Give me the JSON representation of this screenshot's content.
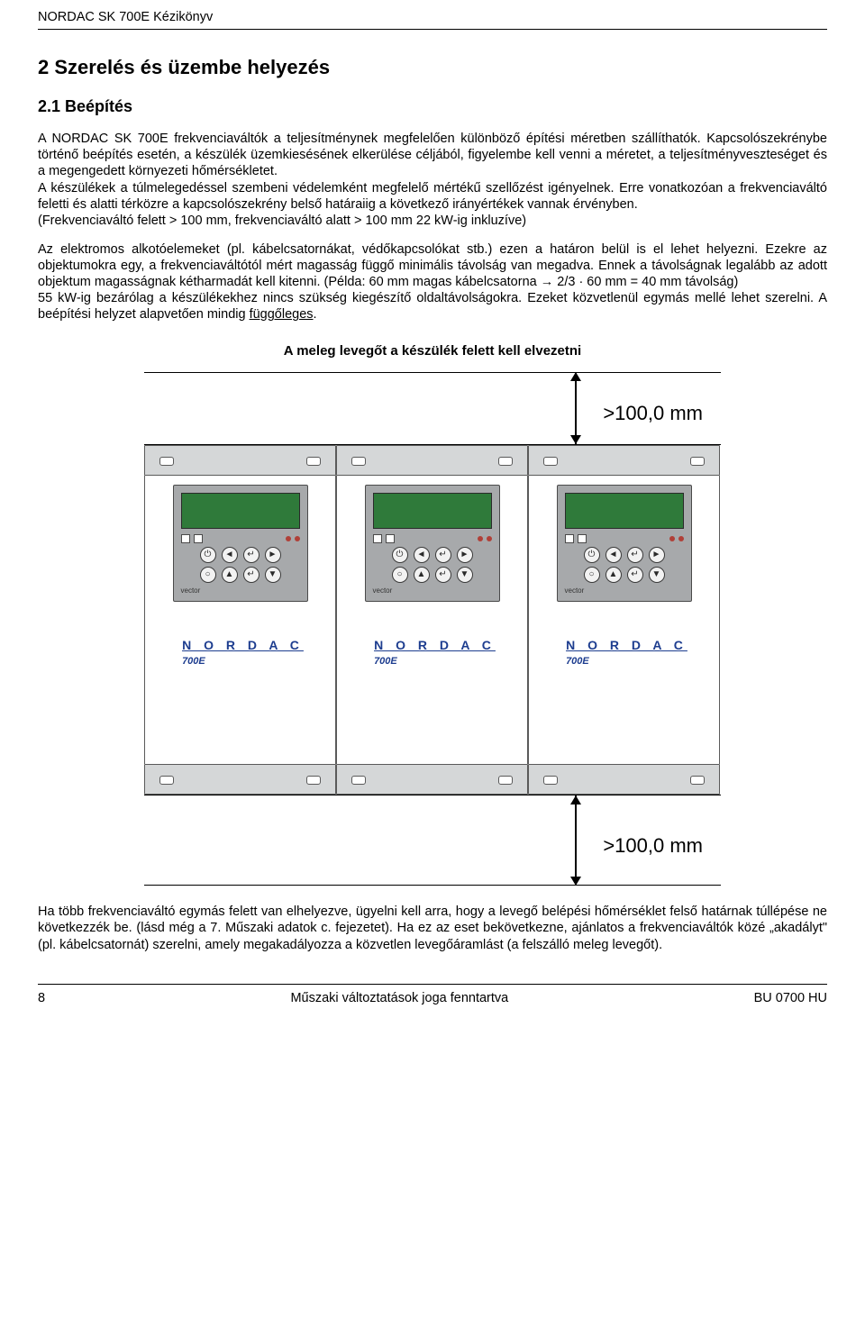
{
  "header": {
    "doc_title": "NORDAC SK 700E Kézikönyv"
  },
  "section": {
    "num_title": "2  Szerelés és üzembe helyezés"
  },
  "subsection": {
    "num_title": "2.1  Beépítés"
  },
  "para": {
    "p1": "A NORDAC SK 700E frekvenciaváltók a teljesítménynek megfelelően különböző építési méretben szállíthatók. Kapcsolószekrénybe történő beépítés esetén, a készülék üzemkiesésének elkerülése céljából, figyelembe kell venni a méretet, a teljesítményveszteséget és a megengedett környezeti hőmérsékletet.",
    "p2": "A készülékek a túlmelegedéssel szembeni védelemként megfelelő mértékű szellőzést igényelnek. Erre vonatkozóan a frekvenciaváltó feletti és alatti térközre a kapcsolószekrény belső határaiig a következő irányértékek vannak érvényben.",
    "p3": "(Frekvenciaváltó felett > 100 mm, frekvenciaváltó alatt > 100 mm 22 kW-ig inkluzíve)",
    "p4a": "Az elektromos alkotóelemeket (pl. kábelcsatornákat, védőkapcsolókat stb.) ezen a határon belül is el lehet helyezni. Ezekre az objektumokra egy, a frekvenciaváltótól mért magasság függő minimális távolság van megadva. Ennek a távolságnak legalább az adott objektum magasságnak kétharmadát kell kitenni. (Példa: 60 mm magas kábelcsatorna → 2/3 · 60 mm = 40 mm távolság)",
    "p4b": "55 kW-ig bezárólag a készülékekhez nincs szükség kiegészítő oldaltávolságokra. Ezeket közvetlenül egymás mellé lehet szerelni. A beépítési helyzet alapvetően mindig ",
    "p4b_u": "függőleges",
    "p4b_end": ".",
    "caption": "A meleg levegőt a készülék felett kell elvezetni",
    "after1": "Ha több frekvenciaváltó egymás felett van elhelyezve, ügyelni kell arra, hogy a levegő belépési hőmérséklet felső határnak túllépése ne következzék be. (lásd még a 7. Műszaki adatok c. fejezetet). Ha ez az eset bekövetkezne, ajánlatos a frekvenciaváltók közé „akadályt\" (pl. kábelcsatornát) szerelni, amely megakadályozza a közvetlen levegőáramlást (a felszálló meleg levegőt)."
  },
  "diagram": {
    "clearance_label": ">100,0 mm",
    "device_brand": "N O R D A C",
    "device_model": "700E",
    "vector_label": "vector",
    "colors": {
      "lcd": "#2f7a3a",
      "faceplate": "#a7a9ab",
      "bracket": "#d5d7d8",
      "brand_text": "#1d3d8f"
    },
    "button_glyphs": {
      "on": "⏻",
      "left": "◄",
      "enter": "↵",
      "right": "►",
      "stop": "○",
      "up": "▲",
      "down": "▼"
    }
  },
  "footer": {
    "page": "8",
    "center": "Műszaki változtatások joga fenntartva",
    "code": "BU 0700 HU"
  }
}
